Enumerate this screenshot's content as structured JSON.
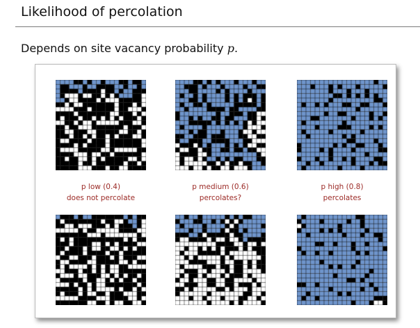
{
  "slide": {
    "title": "Likelihood of percolation",
    "subtitle_text": "Depends on site vacancy probability ",
    "subtitle_var": "p",
    "subtitle_end": "."
  },
  "colors": {
    "open": "#ffffff",
    "blocked": "#000000",
    "full": "#6f95cc",
    "caption": "#9b2a26"
  },
  "captions": [
    {
      "line1": "p low (0.4)",
      "line2": "does not percolate"
    },
    {
      "line1": "p medium (0.6)",
      "line2": "percolates?"
    },
    {
      "line1": "p high (0.8)",
      "line2": "percolates"
    }
  ],
  "grids": [
    {
      "p": 0.4,
      "seed": 11
    },
    {
      "p": 0.6,
      "seed": 23
    },
    {
      "p": 0.8,
      "seed": 37
    },
    {
      "p": 0.4,
      "seed": 51
    },
    {
      "p": 0.6,
      "seed": 67
    },
    {
      "p": 0.8,
      "seed": 83
    }
  ]
}
